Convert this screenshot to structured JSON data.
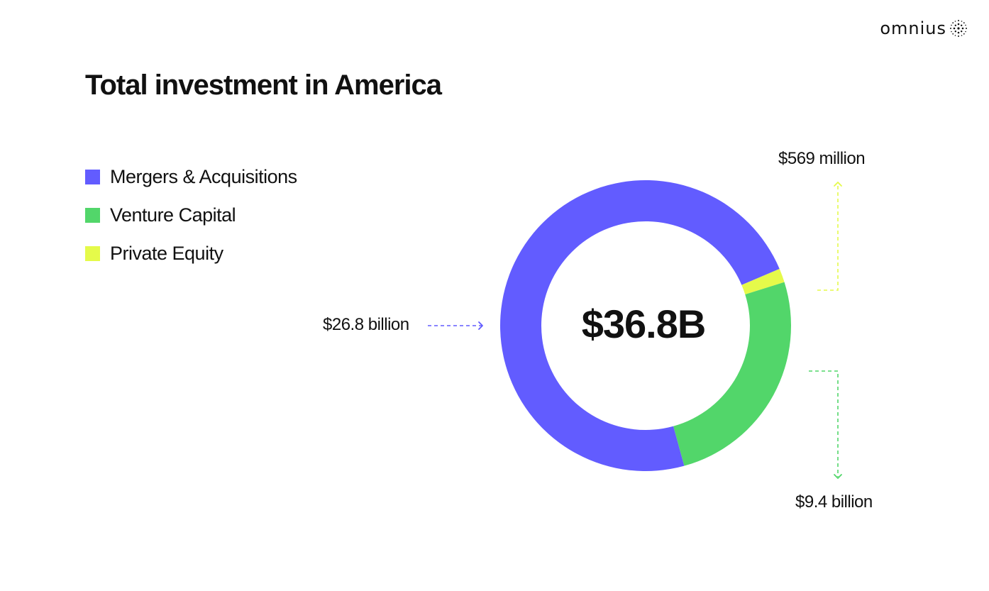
{
  "brand": {
    "name": "omnius",
    "icon": "dotted-sphere-icon"
  },
  "chart_data": {
    "type": "pie",
    "title": "Total investment in America",
    "total_label": "$36.8B",
    "categories": [
      "Mergers & Acquisitions",
      "Venture Capital",
      "Private Equity"
    ],
    "values": [
      26.8,
      9.4,
      0.569
    ],
    "unit": "billion USD",
    "value_labels": [
      "$26.8 billion",
      "$9.4 billion",
      "$569 million"
    ],
    "colors": [
      "#625CFF",
      "#52D66A",
      "#E5FA4A"
    ],
    "legend_placement": "left",
    "donut": true
  }
}
